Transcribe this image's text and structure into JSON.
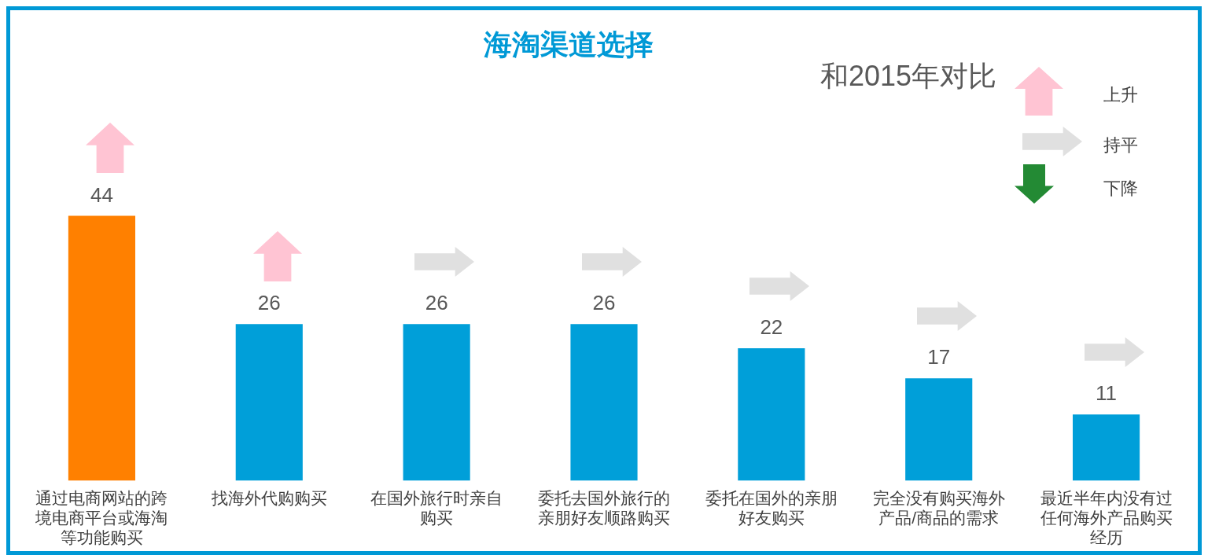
{
  "chart_data": {
    "type": "bar",
    "title": "海淘渠道选择",
    "categories": [
      "通过电商网站的跨境电商平台或海淘等功能购买",
      "找海外代购购买",
      "在国外旅行时亲自购买",
      "委托去国外旅行的亲朋好友顺路购买",
      "委托在国外的亲朋好友购买",
      "完全没有购买海外产品/商品的需求",
      "最近半年内没有过任何海外产品购买经历"
    ],
    "values": [
      44,
      26,
      26,
      26,
      22,
      17,
      11
    ],
    "colors": [
      "#ff8000",
      "#009fd9",
      "#009fd9",
      "#009fd9",
      "#009fd9",
      "#009fd9",
      "#009fd9"
    ],
    "data_labels": true,
    "annotations": [
      "和2015年对比",
      "上升",
      "持平",
      "下降"
    ]
  }
}
